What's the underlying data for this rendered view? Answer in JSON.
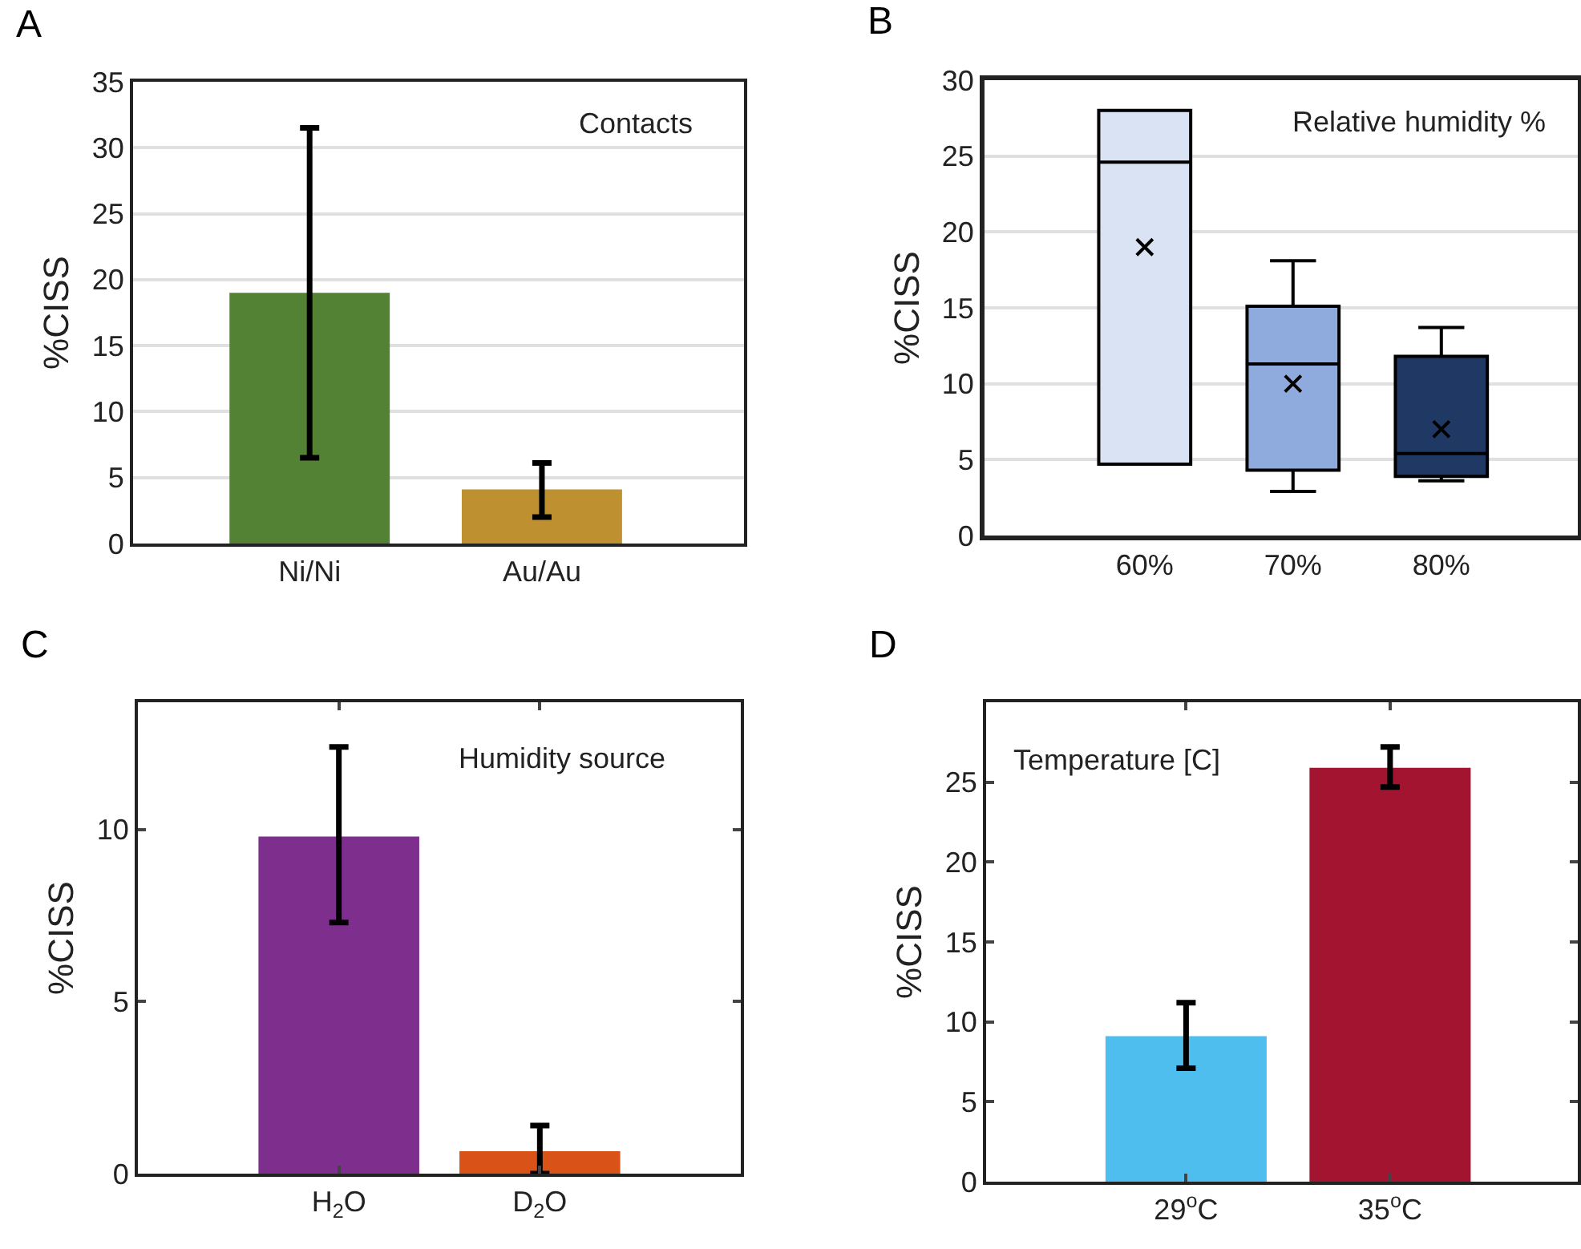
{
  "chart_data": [
    {
      "type": "bar",
      "title": "A",
      "ylabel": "%CISS",
      "annotations": [
        "Contacts"
      ],
      "categories": [
        "Ni/Ni",
        "Au/Au"
      ],
      "values": [
        19,
        4.1
      ],
      "colors": [
        "#548235",
        "#bf9030"
      ],
      "errors": [
        [
          6.5,
          31.5
        ],
        [
          2,
          6.1
        ]
      ],
      "ylim": [
        0,
        35
      ],
      "yticks": [
        0,
        5,
        10,
        15,
        20,
        25,
        30,
        35
      ],
      "grid": "y"
    },
    {
      "type": "box",
      "title": "B",
      "ylabel": "%CISS",
      "annotations": [
        "Relative humidity %"
      ],
      "categories": [
        "60%",
        "70%",
        "80%"
      ],
      "colors": [
        "#dae3f3",
        "#8faadc",
        "#203864"
      ],
      "boxes": [
        {
          "low": 4.7,
          "q1": 4.7,
          "median": 24.6,
          "q3": 28,
          "high": 28,
          "mean": 19
        },
        {
          "low": 2.9,
          "q1": 4.3,
          "median": 11.3,
          "q3": 15.1,
          "high": 18.1,
          "mean": 10
        },
        {
          "low": 3.6,
          "q1": 3.9,
          "median": 5.4,
          "q3": 11.8,
          "high": 13.7,
          "mean": 7
        }
      ],
      "ylim": [
        0,
        30
      ],
      "yticks": [
        0,
        5,
        10,
        15,
        20,
        25,
        30
      ],
      "grid": "y"
    },
    {
      "type": "bar",
      "title": "C",
      "ylabel": "%CISS",
      "annotations": [
        "Humidity source"
      ],
      "categories": [
        "H$_{2}$O",
        "D$_{2}$O"
      ],
      "values": [
        9.8,
        0.65
      ],
      "colors": [
        "#7e2f8e",
        "#d95319"
      ],
      "errors": [
        [
          7.3,
          12.4
        ],
        [
          0,
          1.4
        ]
      ],
      "ylim": [
        0,
        13.7
      ],
      "yticks": [
        0,
        5,
        10
      ]
    },
    {
      "type": "bar",
      "title": "D",
      "ylabel": "%CISS",
      "annotations": [
        "Temperature [C]"
      ],
      "categories": [
        "29$^{o}$C",
        "35$^{o}$C"
      ],
      "values": [
        9.1,
        25.9
      ],
      "colors": [
        "#4dbeee",
        "#a2142f"
      ],
      "errors": [
        [
          7.1,
          11.2
        ],
        [
          24.7,
          27.2
        ]
      ],
      "ylim": [
        0,
        30
      ],
      "yticks": [
        0,
        5,
        10,
        15,
        20,
        25
      ]
    }
  ]
}
